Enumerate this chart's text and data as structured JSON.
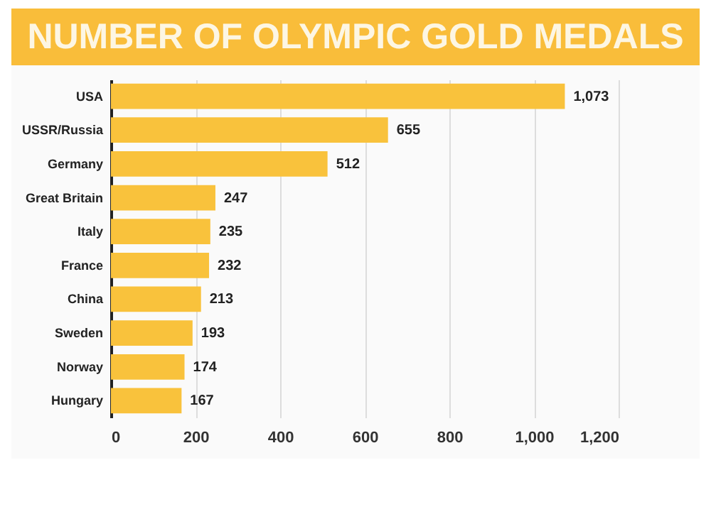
{
  "chart_data": {
    "type": "bar",
    "orientation": "horizontal",
    "title": "NUMBER OF OLYMPIC GOLD MEDALS",
    "categories": [
      "USA",
      "USSR/Russia",
      "Germany",
      "Great Britain",
      "Italy",
      "France",
      "China",
      "Sweden",
      "Norway",
      "Hungary"
    ],
    "values": [
      1073,
      655,
      512,
      247,
      235,
      232,
      213,
      193,
      174,
      167
    ],
    "value_labels": [
      "1,073",
      "655",
      "512",
      "247",
      "235",
      "232",
      "213",
      "193",
      "174",
      "167"
    ],
    "color": "#f9c23c",
    "xlim": [
      0,
      1200
    ],
    "xticks": [
      0,
      200,
      400,
      600,
      800,
      {
        "value": 1000,
        "label": "1,000"
      },
      {
        "value": 1200,
        "label": "1,200"
      }
    ],
    "grid": "x"
  }
}
